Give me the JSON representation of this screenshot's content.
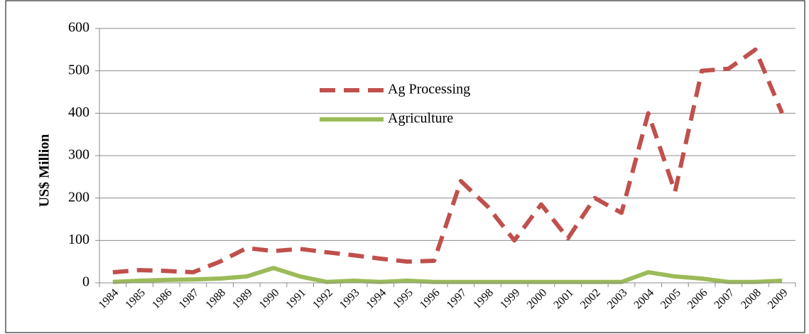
{
  "chart_data": {
    "type": "line",
    "y_label": "US$ Million",
    "categories": [
      "1984",
      "1985",
      "1986",
      "1987",
      "1988",
      "1989",
      "1990",
      "1991",
      "1992",
      "1993",
      "1994",
      "1995",
      "1996",
      "1997",
      "1998",
      "1999",
      "2000",
      "2001",
      "2002",
      "2003",
      "2004",
      "2005",
      "2006",
      "2007",
      "2008",
      "2009"
    ],
    "series": [
      {
        "name": "Ag Processing",
        "color": "#c0504d",
        "dash": true,
        "values": [
          25,
          30,
          28,
          25,
          50,
          82,
          75,
          80,
          72,
          65,
          57,
          50,
          52,
          240,
          180,
          100,
          185,
          105,
          200,
          165,
          400,
          215,
          500,
          505,
          550,
          400
        ]
      },
      {
        "name": "Agriculture",
        "color": "#9bbb59",
        "dash": false,
        "values": [
          2,
          5,
          7,
          8,
          10,
          15,
          35,
          15,
          2,
          5,
          2,
          5,
          2,
          2,
          2,
          2,
          2,
          2,
          2,
          2,
          25,
          15,
          10,
          2,
          2,
          5
        ]
      }
    ],
    "ylim": [
      0,
      600
    ],
    "yticks": [
      0,
      100,
      200,
      300,
      400,
      500,
      600
    ],
    "grid": true
  }
}
